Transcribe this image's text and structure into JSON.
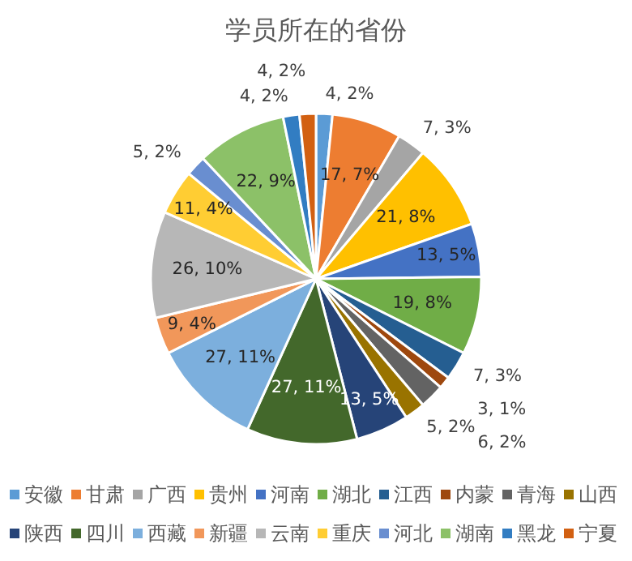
{
  "chart_data": {
    "type": "pie",
    "title": "学员所在的省份",
    "legend": "bottom",
    "categories": [
      "安徽",
      "甘肃",
      "广西",
      "贵州",
      "河南",
      "湖北",
      "江西",
      "内蒙",
      "青海",
      "山西",
      "陕西",
      "四川",
      "西藏",
      "新疆",
      "云南",
      "重庆",
      "河北",
      "湖南",
      "黑龙",
      "宁夏"
    ],
    "values": [
      4,
      17,
      7,
      21,
      13,
      19,
      7,
      3,
      6,
      5,
      13,
      27,
      27,
      9,
      26,
      11,
      5,
      22,
      4,
      4
    ],
    "value_labels": [
      "4, 2%",
      "17, 7%",
      "7, 3%",
      "21, 8%",
      "13, 5%",
      "19, 8%",
      "7, 3%",
      "3, 1%",
      "6, 2%",
      "5, 2%",
      "13, 5%",
      "27, 11%",
      "27, 11%",
      "9, 4%",
      "26, 10%",
      "11, 4%",
      "5, 2%",
      "22, 9%",
      "4, 2%",
      "4, 2%"
    ],
    "colors": [
      "#5b9bd5",
      "#ed7d31",
      "#a5a5a5",
      "#ffc000",
      "#4472c4",
      "#70ad47",
      "#255e91",
      "#9e480e",
      "#636363",
      "#997300",
      "#264478",
      "#43682b",
      "#7cafdd",
      "#f1975a",
      "#b7b7b7",
      "#ffcd33",
      "#698ed0",
      "#8cc168",
      "#327dc2",
      "#d26012"
    ]
  }
}
